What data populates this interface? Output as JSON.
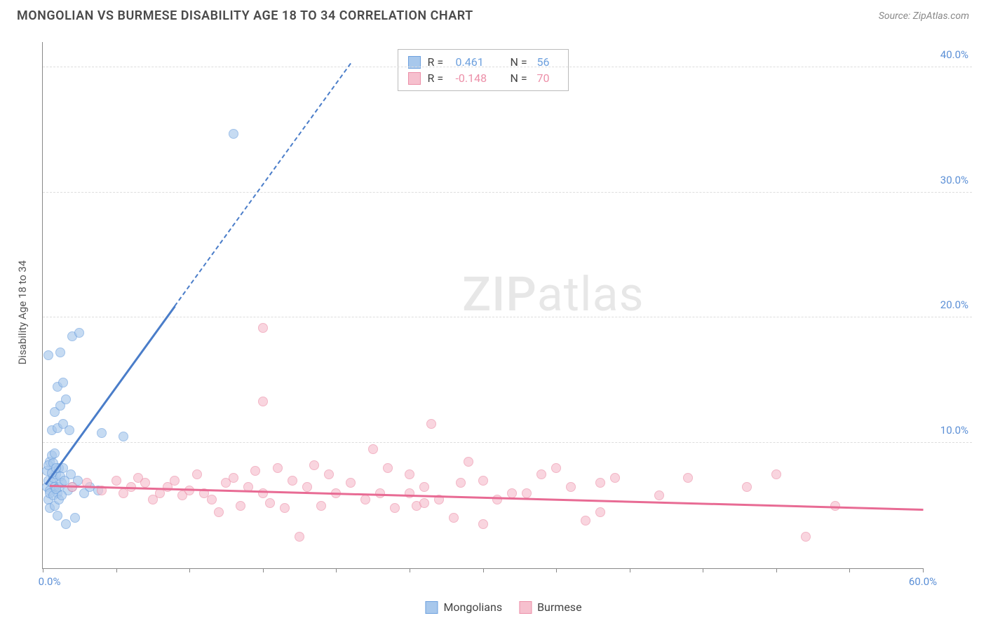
{
  "header": {
    "title": "MONGOLIAN VS BURMESE DISABILITY AGE 18 TO 34 CORRELATION CHART",
    "source": "Source: ZipAtlas.com"
  },
  "chart": {
    "type": "scatter",
    "ylabel": "Disability Age 18 to 34",
    "xlim": [
      0,
      60
    ],
    "ylim": [
      0,
      42
    ],
    "xtick_positions": [
      0,
      5,
      10,
      15,
      20,
      25,
      30,
      35,
      40,
      45,
      50,
      55,
      60
    ],
    "xtick_labels": {
      "0": "0.0%",
      "60": "60.0%"
    },
    "ytick_positions": [
      10,
      20,
      30,
      40
    ],
    "ytick_labels": {
      "10": "10.0%",
      "20": "20.0%",
      "30": "30.0%",
      "40": "40.0%"
    },
    "background_color": "#ffffff",
    "grid_color": "#dddddd",
    "axis_color": "#888888",
    "tick_label_color": "#5b8fd6",
    "watermark": "ZIPatlas",
    "series": [
      {
        "name": "Mongolians",
        "fill_color": "#a8c8ec",
        "stroke_color": "#6da0de",
        "r_value": "0.461",
        "n_value": "56",
        "trend": {
          "x1": 0.2,
          "y1": 6.8,
          "x2": 9,
          "y2": 21,
          "extend_to_x": 21,
          "color": "#4a7dc9"
        },
        "points": [
          [
            0.3,
            6.5
          ],
          [
            0.4,
            7.0
          ],
          [
            0.5,
            6.2
          ],
          [
            0.6,
            6.8
          ],
          [
            0.7,
            7.2
          ],
          [
            0.8,
            6.5
          ],
          [
            0.9,
            7.5
          ],
          [
            1.0,
            6.0
          ],
          [
            1.1,
            8.0
          ],
          [
            1.2,
            7.3
          ],
          [
            0.5,
            8.5
          ],
          [
            0.6,
            9.0
          ],
          [
            0.8,
            9.2
          ],
          [
            1.4,
            8.0
          ],
          [
            0.4,
            5.5
          ],
          [
            0.5,
            4.8
          ],
          [
            0.8,
            5.0
          ],
          [
            1.0,
            4.2
          ],
          [
            1.6,
            3.5
          ],
          [
            2.2,
            4.0
          ],
          [
            0.6,
            11.0
          ],
          [
            1.0,
            11.2
          ],
          [
            1.4,
            11.5
          ],
          [
            1.8,
            11.0
          ],
          [
            4.0,
            10.8
          ],
          [
            0.8,
            12.5
          ],
          [
            1.2,
            13.0
          ],
          [
            1.6,
            13.5
          ],
          [
            1.0,
            14.5
          ],
          [
            1.4,
            14.8
          ],
          [
            0.4,
            17.0
          ],
          [
            1.2,
            17.2
          ],
          [
            2.0,
            18.5
          ],
          [
            2.5,
            18.8
          ],
          [
            5.5,
            10.5
          ],
          [
            13.0,
            34.7
          ],
          [
            0.3,
            7.8
          ],
          [
            0.4,
            8.2
          ],
          [
            0.6,
            7.6
          ],
          [
            0.7,
            8.4
          ],
          [
            0.9,
            8.0
          ],
          [
            1.1,
            6.5
          ],
          [
            1.3,
            6.8
          ],
          [
            1.5,
            7.0
          ],
          [
            1.7,
            6.2
          ],
          [
            1.9,
            7.5
          ],
          [
            0.5,
            6.0
          ],
          [
            0.7,
            5.8
          ],
          [
            0.9,
            6.3
          ],
          [
            1.1,
            5.5
          ],
          [
            1.3,
            5.8
          ],
          [
            2.0,
            6.5
          ],
          [
            2.4,
            7.0
          ],
          [
            2.8,
            6.0
          ],
          [
            3.2,
            6.5
          ],
          [
            3.8,
            6.2
          ]
        ]
      },
      {
        "name": "Burmese",
        "fill_color": "#f6c0ce",
        "stroke_color": "#ec8fa8",
        "r_value": "-0.148",
        "n_value": "70",
        "trend": {
          "x1": 0.5,
          "y1": 6.7,
          "x2": 60,
          "y2": 4.8,
          "color": "#e86b94"
        },
        "points": [
          [
            2,
            6.5
          ],
          [
            3,
            6.8
          ],
          [
            4,
            6.2
          ],
          [
            5,
            7.0
          ],
          [
            5.5,
            6.0
          ],
          [
            6,
            6.5
          ],
          [
            6.5,
            7.2
          ],
          [
            7,
            6.8
          ],
          [
            7.5,
            5.5
          ],
          [
            8,
            6.0
          ],
          [
            8.5,
            6.5
          ],
          [
            9,
            7.0
          ],
          [
            9.5,
            5.8
          ],
          [
            10,
            6.2
          ],
          [
            10.5,
            7.5
          ],
          [
            11,
            6.0
          ],
          [
            11.5,
            5.5
          ],
          [
            12,
            4.5
          ],
          [
            12.5,
            6.8
          ],
          [
            13,
            7.2
          ],
          [
            13.5,
            5.0
          ],
          [
            14,
            6.5
          ],
          [
            14.5,
            7.8
          ],
          [
            15,
            6.0
          ],
          [
            15.5,
            5.2
          ],
          [
            16,
            8.0
          ],
          [
            16.5,
            4.8
          ],
          [
            17,
            7.0
          ],
          [
            17.5,
            2.5
          ],
          [
            18,
            6.5
          ],
          [
            18.5,
            8.2
          ],
          [
            19,
            5.0
          ],
          [
            19.5,
            7.5
          ],
          [
            20,
            6.0
          ],
          [
            15,
            13.3
          ],
          [
            15,
            19.2
          ],
          [
            22,
            5.5
          ],
          [
            22.5,
            9.5
          ],
          [
            23,
            6.0
          ],
          [
            23.5,
            8.0
          ],
          [
            24,
            4.8
          ],
          [
            25,
            7.5
          ],
          [
            25.5,
            5.0
          ],
          [
            26,
            6.5
          ],
          [
            26.5,
            11.5
          ],
          [
            27,
            5.5
          ],
          [
            28,
            4.0
          ],
          [
            28.5,
            6.8
          ],
          [
            30,
            7.0
          ],
          [
            30,
            3.5
          ],
          [
            31,
            5.5
          ],
          [
            32,
            6.0
          ],
          [
            25,
            6.0
          ],
          [
            26,
            5.2
          ],
          [
            34,
            7.5
          ],
          [
            35,
            8.0
          ],
          [
            36,
            6.5
          ],
          [
            37,
            3.8
          ],
          [
            38,
            6.8
          ],
          [
            39,
            7.2
          ],
          [
            44,
            7.2
          ],
          [
            48,
            6.5
          ],
          [
            52,
            2.5
          ],
          [
            54,
            5.0
          ],
          [
            50,
            7.5
          ],
          [
            38,
            4.5
          ],
          [
            42,
            5.8
          ],
          [
            33,
            6.0
          ],
          [
            29,
            8.5
          ],
          [
            21,
            6.8
          ]
        ]
      }
    ],
    "stats_box": {
      "r_label": "R =",
      "n_label": "N ="
    },
    "bottom_legend": [
      {
        "label": "Mongolians",
        "fill": "#a8c8ec",
        "stroke": "#6da0de"
      },
      {
        "label": "Burmese",
        "fill": "#f6c0ce",
        "stroke": "#ec8fa8"
      }
    ]
  }
}
